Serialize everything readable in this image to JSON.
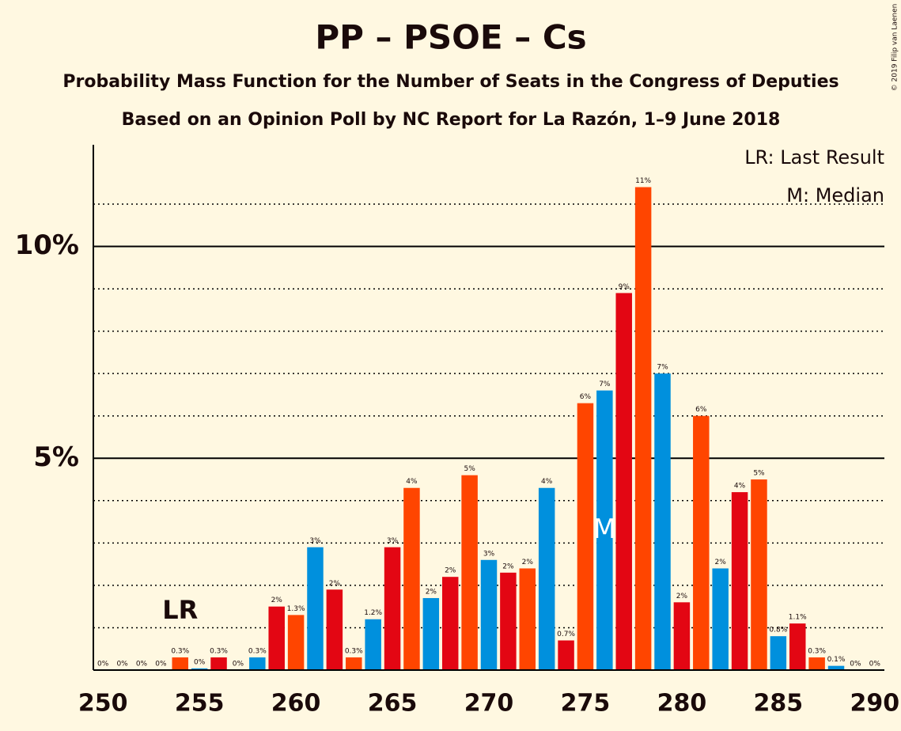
{
  "chart_data": {
    "type": "bar",
    "title": "PP – PSOE – Cs",
    "subtitle": "Probability Mass Function for the Number of Seats in the Congress of Deputies",
    "subtitle2": "Based on an Opinion Poll by NC Report for La Razón, 1–9 June 2018",
    "credit": "© 2019 Filip van Laenen",
    "legend": [
      "LR: Last Result",
      "M: Median"
    ],
    "x": [
      250,
      251,
      252,
      253,
      254,
      255,
      256,
      257,
      258,
      259,
      260,
      261,
      262,
      263,
      264,
      265,
      266,
      267,
      268,
      269,
      270,
      271,
      272,
      273,
      274,
      275,
      276,
      277,
      278,
      279,
      280,
      281,
      282,
      283,
      284,
      285,
      286,
      287,
      288,
      289,
      290
    ],
    "values": [
      0,
      0,
      0,
      0,
      0.3,
      0.04,
      0.3,
      0,
      0.3,
      1.5,
      1.3,
      2.9,
      1.9,
      0.3,
      1.2,
      2.9,
      4.3,
      1.7,
      2.2,
      4.6,
      2.6,
      2.3,
      2.4,
      4.3,
      0.7,
      6.3,
      6.6,
      8.9,
      11.4,
      7.0,
      1.6,
      6.0,
      2.4,
      4.2,
      4.5,
      0.8,
      1.1,
      0.3,
      0.1,
      0,
      0
    ],
    "value_labels": [
      "0%",
      "0%",
      "0%",
      "0%",
      "0.3%",
      "0%",
      "0.3%",
      "0%",
      "0.3%",
      "2%",
      "1.3%",
      "3%",
      "2%",
      "0.3%",
      "1.2%",
      "3%",
      "4%",
      "2%",
      "2%",
      "5%",
      "3%",
      "2%",
      "2%",
      "4%",
      "0.7%",
      "6%",
      "7%",
      "9%",
      "11%",
      "7%",
      "2%",
      "6%",
      "2%",
      "4%",
      "5%",
      "0.8%",
      "1.1%",
      "0.3%",
      "0.1%",
      "0%",
      "0%"
    ],
    "colors": [
      "#e30613",
      "#ff4500",
      "#0090dd",
      "#e30613",
      "#ff4500",
      "#0090dd",
      "#e30613",
      "#ff4500",
      "#0090dd",
      "#e30613",
      "#ff4500",
      "#0090dd",
      "#e30613",
      "#ff4500",
      "#0090dd",
      "#e30613",
      "#ff4500",
      "#0090dd",
      "#e30613",
      "#ff4500",
      "#0090dd",
      "#e30613",
      "#ff4500",
      "#0090dd",
      "#e30613",
      "#ff4500",
      "#0090dd",
      "#e30613",
      "#ff4500",
      "#0090dd",
      "#e30613",
      "#ff4500",
      "#0090dd",
      "#e30613",
      "#ff4500",
      "#0090dd",
      "#e30613",
      "#ff4500",
      "#0090dd",
      "#e30613",
      "#ff4500"
    ],
    "annotations": [
      {
        "text": "LR",
        "x": 254
      },
      {
        "text": "M",
        "x": 276
      }
    ],
    "xlim": [
      249.5,
      290.5
    ],
    "xticks": [
      250,
      255,
      260,
      265,
      270,
      275,
      280,
      285,
      290
    ],
    "ylim": [
      0,
      12.4
    ],
    "yticks": [
      {
        "value": 5,
        "label": "5%"
      },
      {
        "value": 10,
        "label": "10%"
      }
    ],
    "minor_yticks": [
      1,
      2,
      3,
      4,
      6,
      7,
      8,
      9,
      11
    ],
    "grid": true
  }
}
